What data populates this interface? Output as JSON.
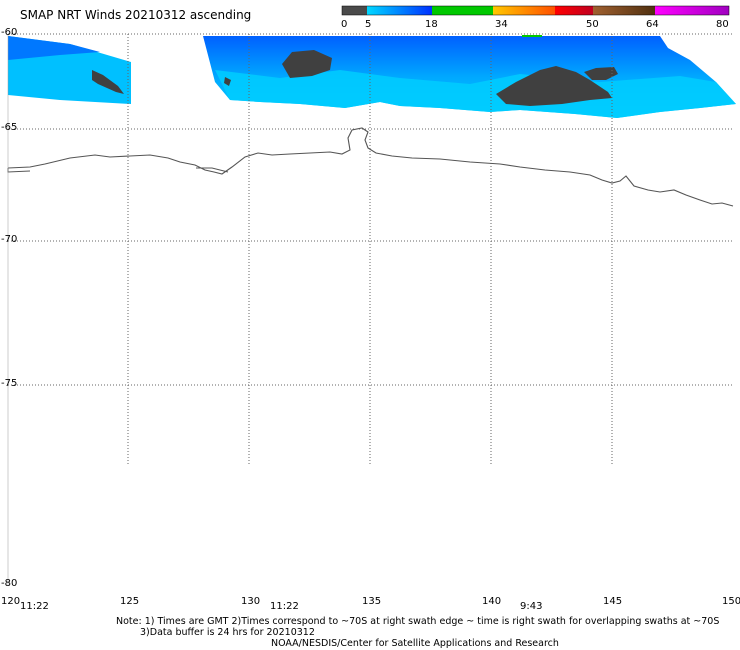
{
  "title": "SMAP NRT Winds 20210312 ascending",
  "colorbar": {
    "ticks": [
      "0",
      "5",
      "18",
      "34",
      "50",
      "64",
      "80"
    ],
    "segments": [
      "#4a4a4a",
      "#00c8ff",
      "#0050ff",
      "#00c800",
      "#f0a000",
      "#e00000",
      "#7a4020",
      "#c800c8"
    ]
  },
  "lat_labels": [
    "-60",
    "-65",
    "-70",
    "-75",
    "-80"
  ],
  "lon_labels": [
    "120",
    "125",
    "130",
    "135",
    "140",
    "145",
    "150"
  ],
  "time_labels": [
    "11:22",
    "11:22",
    "9:43"
  ],
  "notes": {
    "line1": "Note: 1) Times are GMT 2)Times correspond to ~70S at right swath edge ~ time is right swath for overlapping swaths at ~70S",
    "line2": "3)Data buffer is 24 hrs for 20210312",
    "line3": "NOAA/NESDIS/Center for Satellite Applications and Research"
  },
  "colors": {
    "wind_light": "#00c8ff",
    "wind_mid": "#00a0ff",
    "wind_dark": "#0050ff",
    "calm": "#404040",
    "coast": "#555555",
    "grid": "#666666"
  }
}
